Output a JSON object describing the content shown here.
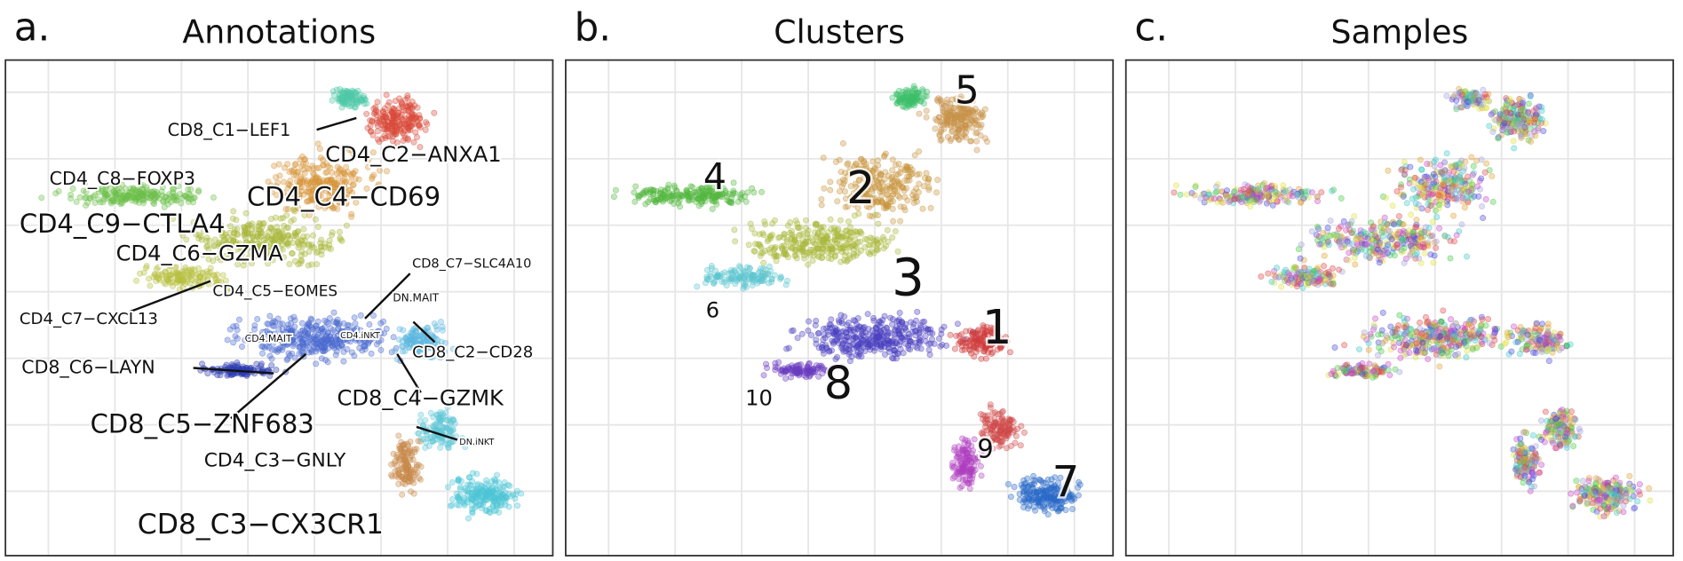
{
  "panels": [
    {
      "letter": "a.",
      "title": "Annotations",
      "labels": [
        "CD8_C1−LEF1",
        "CD4_C2−ANXA1",
        "CD4_C8−FOXP3",
        "CD4_C4−CD69",
        "CD4_C9−CTLA4",
        "CD4_C6−GZMA",
        "CD8_C7−SLC4A10",
        "CD4_C5−EOMES",
        "DN.MAIT",
        "CD4_C7−CXCL13",
        "CD4.MAIT",
        "CD4.iNKT",
        "CD8_C2−CD28",
        "CD8_C6−LAYN",
        "CD8_C4−GZMK",
        "CD8_C5−ZNF683",
        "DN.iNKT",
        "CD4_C3−GNLY",
        "CD8_C3−CX3CR1"
      ]
    },
    {
      "letter": "b.",
      "title": "Clusters",
      "labels": [
        "5",
        "4",
        "2",
        "3",
        "6",
        "1",
        "8",
        "10",
        "9",
        "7"
      ]
    },
    {
      "letter": "c.",
      "title": "Samples",
      "labels": []
    }
  ]
}
